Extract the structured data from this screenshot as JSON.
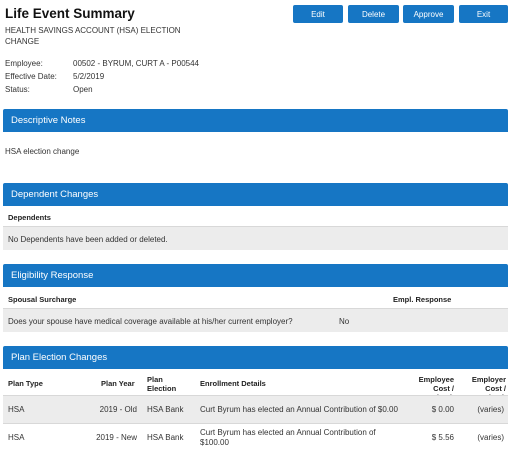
{
  "header": {
    "title": "Life Event Summary",
    "subtitle": "HEALTH SAVINGS ACCOUNT (HSA) ELECTION CHANGE"
  },
  "toolbar": {
    "edit_label": "Edit",
    "delete_label": "Delete",
    "approve_label": "Approve",
    "exit_label": "Exit"
  },
  "info": {
    "employee_label": "Employee:",
    "employee_value": "00502 - BYRUM, CURT A - P00544",
    "effective_label": "Effective Date:",
    "effective_value": "5/2/2019",
    "status_label": "Status:",
    "status_value": "Open"
  },
  "descriptive_notes": {
    "title": "Descriptive Notes",
    "text": "HSA election change"
  },
  "dependent_changes": {
    "title": "Dependent Changes",
    "column": "Dependents",
    "row_text": "No Dependents have been added or deleted."
  },
  "eligibility": {
    "title": "Eligibility Response",
    "col_question": "Spousal Surcharge",
    "col_response": "Empl. Response",
    "question": "Does your spouse have medical coverage available at his/her current employer?",
    "answer": "No"
  },
  "plan_election": {
    "title": "Plan Election Changes",
    "columns": {
      "plan_type": "Plan Type",
      "plan_year": "Plan Year",
      "plan_election": "Plan Election",
      "enrollment": "Enrollment Details",
      "employee_cost": "Employee Cost / Check",
      "employer_cost": "Employer Cost / Check"
    },
    "rows": [
      {
        "plan_type": "HSA",
        "plan_year": "2019 - Old",
        "plan_election": "HSA Bank",
        "details": "Curt Byrum has elected an Annual Contribution of $0.00",
        "employee_cost": "$ 0.00",
        "employer_cost": "(varies)"
      },
      {
        "plan_type": "HSA",
        "plan_year": "2019 - New",
        "plan_election": "HSA Bank",
        "details": "Curt Byrum has elected an Annual Contribution of $100.00",
        "employee_cost": "$ 5.56",
        "employer_cost": "(varies)"
      }
    ]
  }
}
